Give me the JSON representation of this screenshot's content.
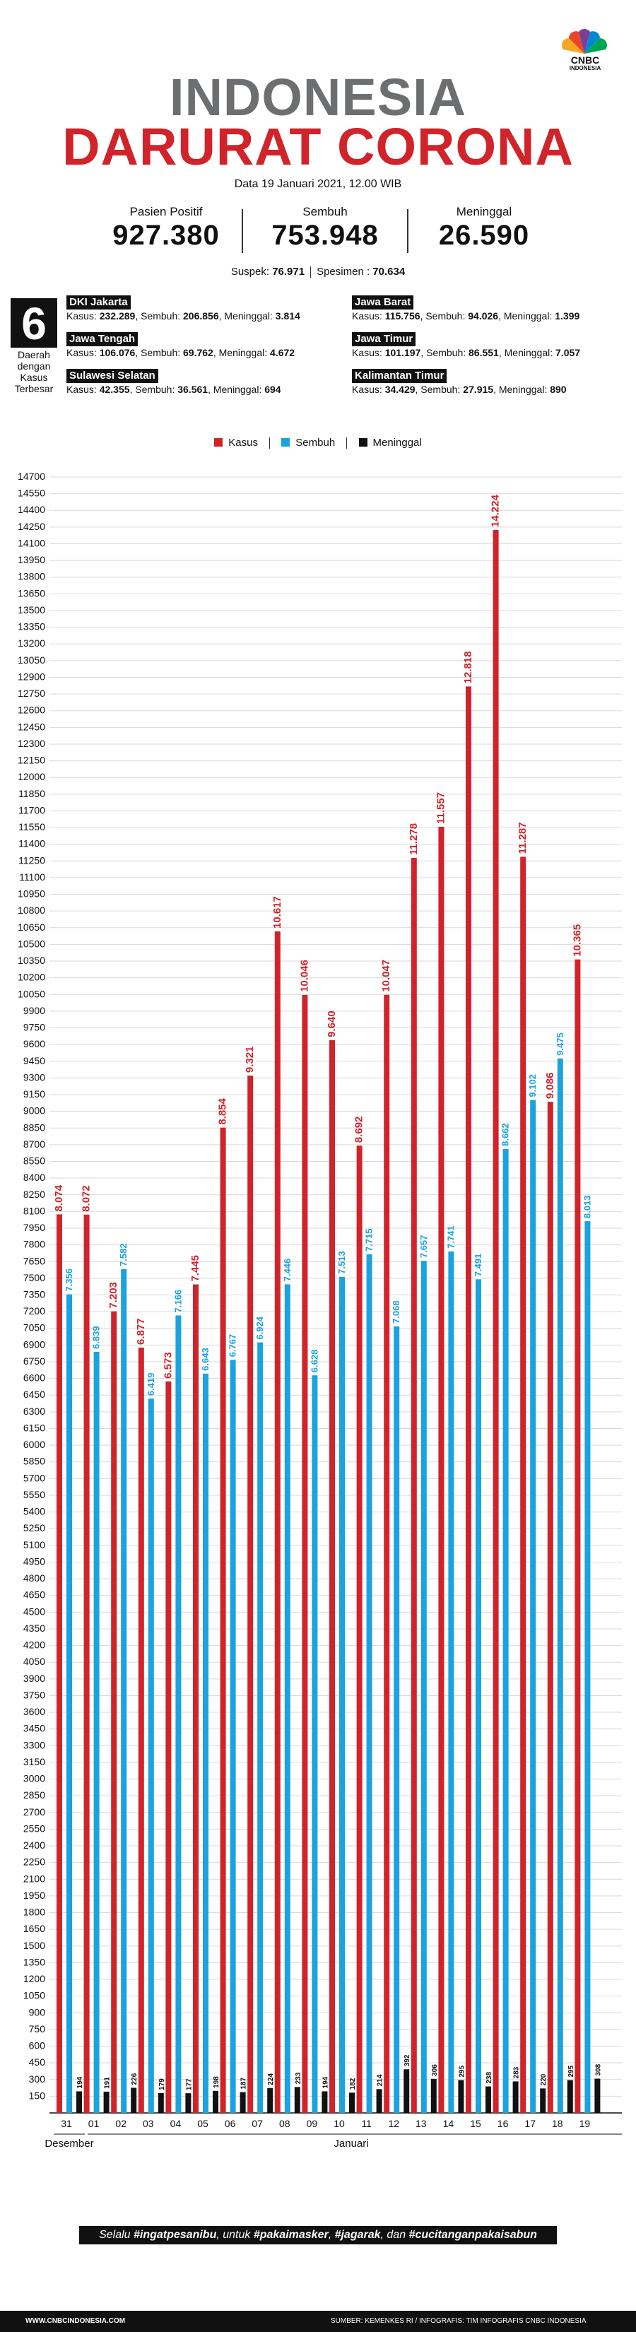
{
  "brand": {
    "name": "CNBC",
    "sub": "INDONESIA"
  },
  "header": {
    "title_line1": "INDONESIA",
    "title_line2": "DARURAT CORONA",
    "date": "Data 19 Januari 2021, 12.00 WIB"
  },
  "stats": {
    "positif": {
      "label": "Pasien Positif",
      "value": "927.380"
    },
    "sembuh": {
      "label": "Sembuh",
      "value": "753.948"
    },
    "meninggal": {
      "label": "Meninggal",
      "value": "26.590"
    }
  },
  "suspek": {
    "label": "Suspek: ",
    "value": "76.971",
    "spesimen_label": "Spesimen : ",
    "spesimen_value": "70.634"
  },
  "provinces": {
    "count": "6",
    "caption": "Daerah dengan Kasus Terbesar",
    "items": [
      {
        "name": "DKI Jakarta",
        "kasus": "232.289",
        "sembuh": "206.856",
        "meninggal": "3.814"
      },
      {
        "name": "Jawa Barat",
        "kasus": "115.756",
        "sembuh": "94.026",
        "meninggal": "1.399"
      },
      {
        "name": "Jawa Tengah",
        "kasus": "106.076",
        "sembuh": "69.762",
        "meninggal": "4.672"
      },
      {
        "name": "Jawa Timur",
        "kasus": "101.197",
        "sembuh": "86.551",
        "meninggal": "7.057"
      },
      {
        "name": "Sulawesi Selatan",
        "kasus": "42.355",
        "sembuh": "36.561",
        "meninggal": "694"
      },
      {
        "name": "Kalimantan Timur",
        "kasus": "34.429",
        "sembuh": "27.915",
        "meninggal": "890"
      }
    ]
  },
  "legend": {
    "kasus": "Kasus",
    "sembuh": "Sembuh",
    "meninggal": "Meninggal"
  },
  "colors": {
    "kasus": "#d0232a",
    "sembuh": "#1aa3df",
    "meninggal": "#111111",
    "grid": "#d9d9d9",
    "title_gray": "#6d6e70"
  },
  "chart_data": {
    "type": "bar",
    "categories": [
      "31",
      "01",
      "02",
      "03",
      "04",
      "05",
      "06",
      "07",
      "08",
      "09",
      "10",
      "11",
      "12",
      "13",
      "14",
      "15",
      "16",
      "17",
      "18",
      "19"
    ],
    "group_labels": [
      "Desember",
      "Januari"
    ],
    "ylim": [
      0,
      14700
    ],
    "ytick_step": 150,
    "series": [
      {
        "name": "Kasus",
        "color": "#d0232a",
        "values": [
          8074,
          8072,
          7203,
          6877,
          6573,
          7445,
          8854,
          9321,
          10617,
          10046,
          9640,
          8692,
          10047,
          11278,
          11557,
          12818,
          14224,
          11287,
          9086,
          10365
        ],
        "labels": [
          "8.074",
          "8.072",
          "7.203",
          "6.877",
          "6.573",
          "7.445",
          "8.854",
          "9.321",
          "10.617",
          "10.046",
          "9.640",
          "8.692",
          "10.047",
          "11.278",
          "11.557",
          "12.818",
          "14.224",
          "11.287",
          "9.086",
          "10.365"
        ]
      },
      {
        "name": "Sembuh",
        "color": "#1aa3df",
        "values": [
          7356,
          6839,
          7582,
          6419,
          7166,
          6643,
          6767,
          6924,
          7446,
          6628,
          7513,
          7715,
          7068,
          7657,
          7741,
          7491,
          8662,
          9102,
          9475,
          8013
        ],
        "labels": [
          "7.356",
          "6.839",
          "7.582",
          "6.419",
          "7.166",
          "6.643",
          "6.767",
          "6.924",
          "7.446",
          "6.628",
          "7.513",
          "7.715",
          "7.068",
          "7.657",
          "7.741",
          "7.491",
          "8.662",
          "9.102",
          "9.475",
          "8.013"
        ]
      },
      {
        "name": "Meninggal",
        "color": "#111111",
        "values": [
          194,
          191,
          226,
          179,
          177,
          198,
          187,
          224,
          233,
          194,
          182,
          214,
          392,
          306,
          295,
          238,
          283,
          220,
          295,
          308
        ],
        "labels": [
          "194",
          "191",
          "226",
          "179",
          "177",
          "198",
          "187",
          "224",
          "233",
          "194",
          "182",
          "214",
          "392",
          "306",
          "295",
          "238",
          "283",
          "220",
          "295",
          "308"
        ]
      }
    ]
  },
  "slogan": {
    "p1": "Selalu ",
    "h1": "#ingatpesanibu",
    "p2": ", untuk ",
    "h2": "#pakaimasker",
    "p3": ", ",
    "h3": "#jagarak",
    "p4": ", dan ",
    "h4": "#cucitanganpakaisabun"
  },
  "footer": {
    "left": "WWW.CNBCINDONESIA.COM",
    "right": "SUMBER: KEMENKES RI / INFOGRAFIS: TIM INFOGRAFIS CNBC INDONESIA"
  }
}
